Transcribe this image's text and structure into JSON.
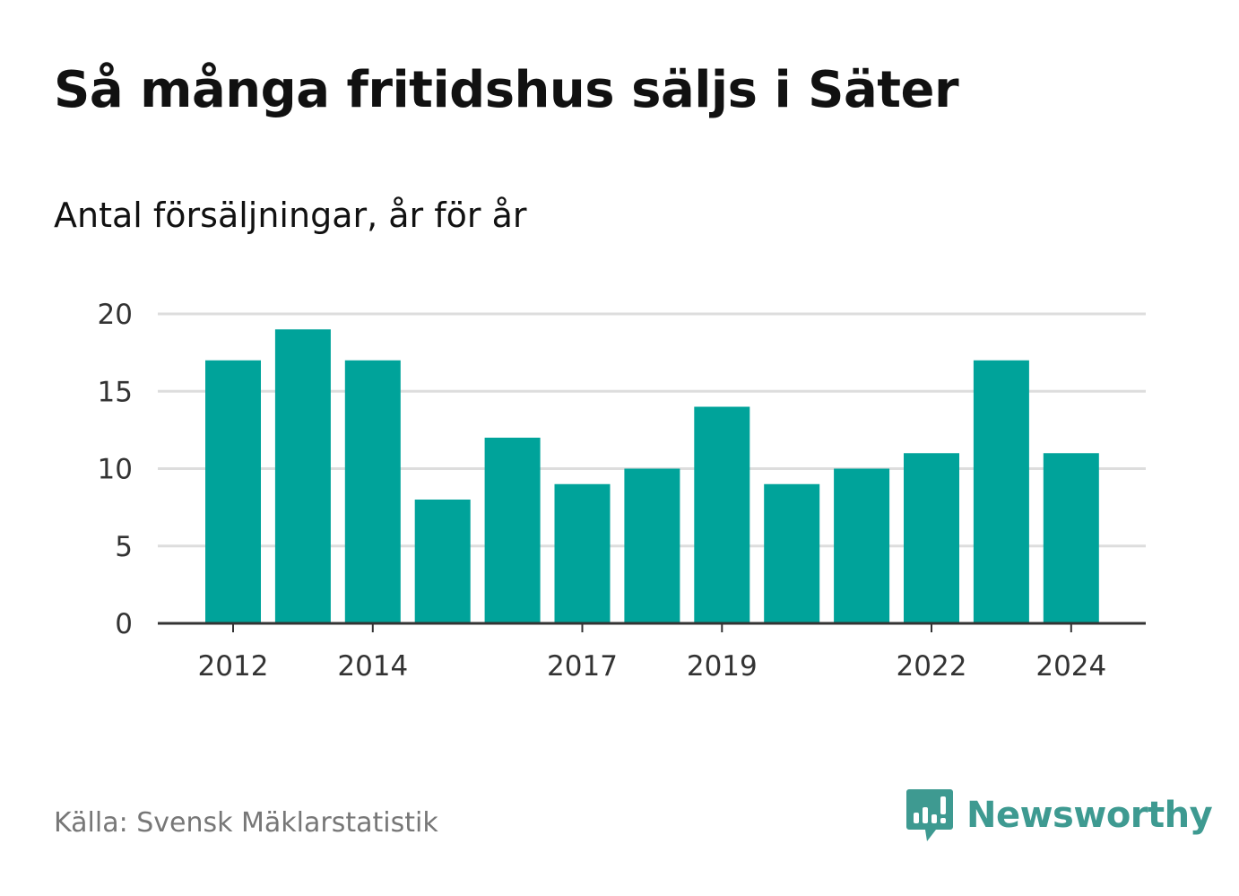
{
  "header": {
    "title": "Så många fritidshus säljs i Säter",
    "subtitle": "Antal försäljningar, år för år"
  },
  "footer": {
    "source": "Källa: Svensk Mäklarstatistik",
    "brand": "Newsworthy",
    "brand_icon": "bar-chart-speech-bubble-icon"
  },
  "colors": {
    "bar": "#00a39a",
    "grid": "#dddddd",
    "axis": "#333333",
    "brand": "#3e9a91"
  },
  "chart_data": {
    "type": "bar",
    "categories": [
      "2012",
      "2013",
      "2014",
      "2015",
      "2016",
      "2017",
      "2018",
      "2019",
      "2020",
      "2021",
      "2022",
      "2023",
      "2024"
    ],
    "values": [
      17,
      19,
      17,
      8,
      12,
      9,
      10,
      14,
      9,
      10,
      11,
      17,
      11
    ],
    "x_tick_labels": [
      "2012",
      "2014",
      "2017",
      "2019",
      "2022",
      "2024"
    ],
    "y_ticks": [
      0,
      5,
      10,
      15,
      20
    ],
    "ylim": [
      0,
      20
    ],
    "grid": true
  }
}
